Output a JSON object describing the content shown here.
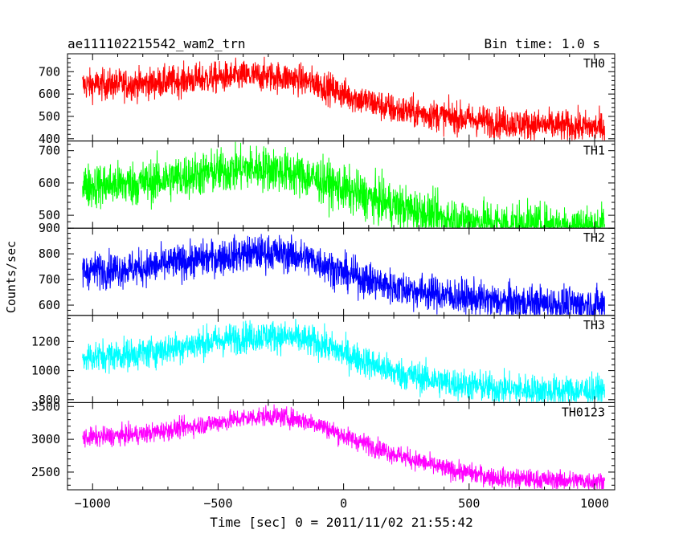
{
  "chart_data": {
    "type": "line",
    "title": "ae111102215542_wam2_trn",
    "subtitle": "Bin time: 1.0 s",
    "xlabel": "Time [sec] 0 = 2011/11/02 21:55:42",
    "ylabel": "Counts/sec",
    "xlim": [
      -1100,
      1080
    ],
    "x_ticks": [
      -1000,
      -500,
      0,
      500,
      1000
    ],
    "x_tick_labels": [
      "−1000",
      "−500",
      "0",
      "500",
      "1000"
    ],
    "data_x_range": [
      -1040,
      1040
    ],
    "grid": false,
    "legend": "none",
    "series": [
      {
        "name": "TH0",
        "color": "#ff0000",
        "ylim": [
          390,
          780
        ],
        "noise": 35,
        "yticks": [
          400,
          500,
          600,
          700
        ],
        "ytick_labels": [
          "400",
          "500",
          "600",
          "700"
        ],
        "profile_x": [
          -1040,
          -800,
          -600,
          -400,
          -300,
          -200,
          -100,
          0,
          200,
          400,
          600,
          800,
          1040
        ],
        "profile_y": [
          640,
          645,
          665,
          680,
          680,
          670,
          645,
          600,
          530,
          500,
          475,
          460,
          450
        ]
      },
      {
        "name": "TH1",
        "color": "#00ff00",
        "ylim": [
          460,
          730
        ],
        "noise": 35,
        "yticks": [
          500,
          600,
          700
        ],
        "ytick_labels": [
          "500",
          "600",
          "700"
        ],
        "profile_x": [
          -1040,
          -800,
          -600,
          -400,
          -300,
          -200,
          -100,
          0,
          200,
          400,
          600,
          800,
          1040
        ],
        "profile_y": [
          590,
          600,
          625,
          645,
          645,
          630,
          610,
          580,
          530,
          490,
          475,
          465,
          465
        ]
      },
      {
        "name": "TH2",
        "color": "#0000ff",
        "ylim": [
          560,
          900
        ],
        "noise": 35,
        "yticks": [
          600,
          700,
          800,
          900
        ],
        "ytick_labels": [
          "600",
          "700",
          "800",
          "900"
        ],
        "profile_x": [
          -1040,
          -800,
          -600,
          -400,
          -300,
          -200,
          -100,
          0,
          200,
          400,
          600,
          800,
          1040
        ],
        "profile_y": [
          735,
          745,
          775,
          800,
          805,
          795,
          770,
          725,
          670,
          640,
          615,
          605,
          600
        ]
      },
      {
        "name": "TH3",
        "color": "#00ffff",
        "ylim": [
          780,
          1380
        ],
        "noise": 55,
        "yticks": [
          800,
          1000,
          1200
        ],
        "ytick_labels": [
          "800",
          "1000",
          "1200"
        ],
        "profile_x": [
          -1040,
          -800,
          -600,
          -400,
          -300,
          -200,
          -100,
          0,
          200,
          400,
          600,
          800,
          1040
        ],
        "profile_y": [
          1090,
          1120,
          1180,
          1230,
          1240,
          1225,
          1190,
          1120,
          990,
          920,
          880,
          860,
          860
        ]
      },
      {
        "name": "TH0123",
        "color": "#ff00ff",
        "ylim": [
          2230,
          3560
        ],
        "noise": 75,
        "yticks": [
          2500,
          3000,
          3500
        ],
        "ytick_labels": [
          "2500",
          "3000",
          "3500"
        ],
        "profile_x": [
          -1040,
          -800,
          -600,
          -400,
          -300,
          -200,
          -100,
          0,
          200,
          400,
          600,
          800,
          1040
        ],
        "profile_y": [
          3020,
          3080,
          3200,
          3320,
          3360,
          3320,
          3230,
          3050,
          2780,
          2550,
          2420,
          2380,
          2360
        ]
      }
    ]
  }
}
